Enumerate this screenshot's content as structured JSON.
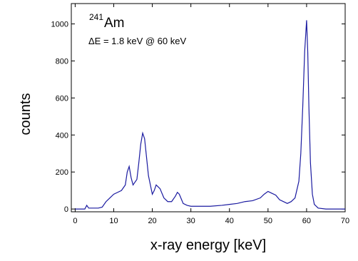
{
  "chart_data": {
    "type": "line",
    "annotations": [
      "241",
      "Am",
      "ΔE = 1.8 keV @ 60 keV"
    ],
    "xlabel": "x-ray energy [keV]",
    "ylabel": "counts",
    "x": [
      0,
      2.5,
      3,
      3.5,
      4,
      5,
      6,
      7,
      8,
      9,
      10,
      11,
      12,
      13,
      13.5,
      14,
      14.5,
      15,
      16,
      16.5,
      17,
      17.5,
      18,
      18.5,
      19,
      20,
      20.5,
      21,
      21.5,
      22,
      23,
      24,
      25,
      26,
      26.5,
      27,
      28,
      29,
      30,
      32,
      35,
      38,
      40,
      42,
      44,
      46,
      48,
      49,
      50,
      51,
      52,
      53,
      54,
      55,
      56,
      57,
      58,
      58.5,
      59,
      59.5,
      60,
      60.3,
      60.6,
      61,
      61.5,
      62,
      63,
      65,
      70
    ],
    "series": [
      {
        "color": "#1a1aa0",
        "values": [
          0,
          0,
          20,
          5,
          5,
          5,
          5,
          10,
          40,
          60,
          80,
          90,
          100,
          130,
          200,
          230,
          170,
          130,
          160,
          250,
          350,
          410,
          380,
          280,
          180,
          80,
          100,
          130,
          120,
          110,
          60,
          40,
          40,
          70,
          90,
          80,
          30,
          20,
          15,
          15,
          15,
          20,
          25,
          30,
          40,
          45,
          60,
          80,
          95,
          85,
          75,
          50,
          40,
          30,
          40,
          60,
          150,
          300,
          550,
          850,
          1020,
          850,
          550,
          250,
          80,
          25,
          5,
          0,
          0
        ]
      }
    ],
    "xlim": [
      -1,
      70
    ],
    "ylim": [
      -15,
      1110
    ],
    "xticks": [
      0,
      10,
      20,
      30,
      40,
      50,
      60,
      70
    ],
    "yticks": [
      0,
      200,
      400,
      600,
      800,
      1000
    ]
  }
}
